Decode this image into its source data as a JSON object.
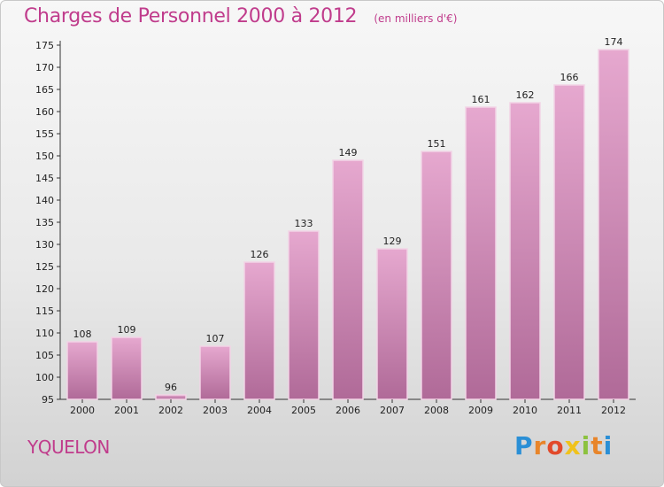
{
  "title": "Charges de Personnel 2000 à 2012",
  "subtitle": "(en milliers d'€)",
  "place": "YQUELON",
  "logo": {
    "letters": [
      "P",
      "r",
      "o",
      "x",
      "i",
      "t",
      "i"
    ],
    "colors": [
      "#2a8fd6",
      "#e8852a",
      "#e24a2b",
      "#f0c21b",
      "#8cc23f",
      "#e8852a",
      "#2a8fd6"
    ]
  },
  "colors": {
    "bar_top": "#e6a8cf",
    "bar_bottom": "#b06a98",
    "bar_edge": "#f2d4e6",
    "text": "#222222",
    "accent": "#c03c8c"
  },
  "chart_data": {
    "type": "bar",
    "categories": [
      "2000",
      "2001",
      "2002",
      "2003",
      "2004",
      "2005",
      "2006",
      "2007",
      "2008",
      "2009",
      "2010",
      "2011",
      "2012"
    ],
    "values": [
      108,
      109,
      96,
      107,
      126,
      133,
      149,
      129,
      151,
      161,
      162,
      166,
      174
    ],
    "ylim": [
      95,
      175
    ],
    "yticks": [
      95,
      100,
      105,
      110,
      115,
      120,
      125,
      130,
      135,
      140,
      145,
      150,
      155,
      160,
      165,
      170,
      175
    ],
    "grid": false,
    "data_labels": true
  }
}
